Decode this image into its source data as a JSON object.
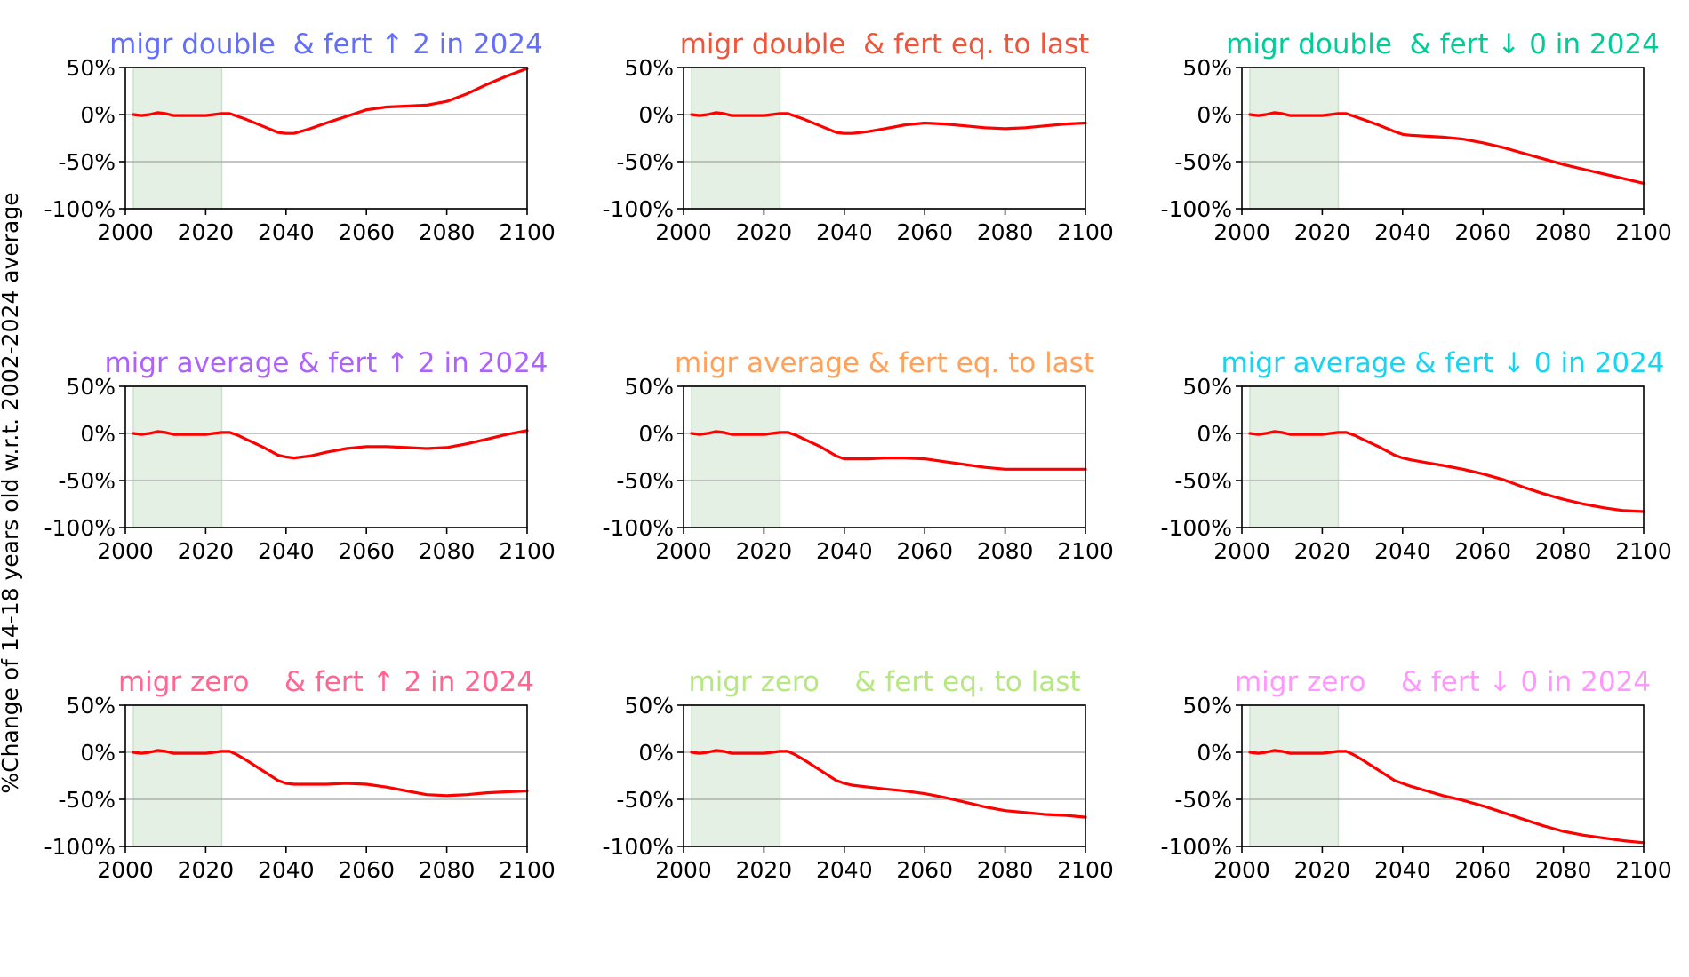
{
  "figure": {
    "ylabel": "%Change of 14-18 years old w.r.t. 2002-2024 average"
  },
  "chart_data": [
    {
      "type": "line",
      "title": "migr double  & fert ↑ 2 in 2024",
      "title_color": "#636efa",
      "line_color": "#ff0000",
      "shaded_x_range": [
        2002,
        2024
      ],
      "xlim": [
        2000,
        2100
      ],
      "ylim": [
        -100,
        50
      ],
      "x_ticks": [
        "2000",
        "2020",
        "2040",
        "2060",
        "2080",
        "2100"
      ],
      "y_ticks": [
        "50%",
        "0%",
        "-50%",
        "-100%"
      ],
      "grid": "horizontal",
      "x": [
        2002,
        2004,
        2006,
        2008,
        2010,
        2012,
        2014,
        2016,
        2018,
        2020,
        2022,
        2024,
        2026,
        2028,
        2030,
        2034,
        2038,
        2040,
        2042,
        2046,
        2050,
        2055,
        2060,
        2065,
        2070,
        2075,
        2080,
        2085,
        2090,
        2095,
        2100
      ],
      "y": [
        0,
        -1,
        0,
        2,
        1,
        -1,
        -1,
        -1,
        -1,
        -1,
        0,
        1,
        1,
        -2,
        -5,
        -12,
        -19,
        -20,
        -20,
        -15,
        -9,
        -2,
        5,
        8,
        9,
        10,
        14,
        22,
        32,
        41,
        49
      ]
    },
    {
      "type": "line",
      "title": "migr double  & fert eq. to last",
      "title_color": "#ef553b",
      "line_color": "#ff0000",
      "shaded_x_range": [
        2002,
        2024
      ],
      "xlim": [
        2000,
        2100
      ],
      "ylim": [
        -100,
        50
      ],
      "x_ticks": [
        "2000",
        "2020",
        "2040",
        "2060",
        "2080",
        "2100"
      ],
      "y_ticks": [
        "50%",
        "0%",
        "-50%",
        "-100%"
      ],
      "grid": "horizontal",
      "x": [
        2002,
        2004,
        2006,
        2008,
        2010,
        2012,
        2014,
        2016,
        2018,
        2020,
        2022,
        2024,
        2026,
        2028,
        2030,
        2034,
        2038,
        2040,
        2042,
        2046,
        2050,
        2055,
        2060,
        2065,
        2070,
        2075,
        2080,
        2085,
        2090,
        2095,
        2100
      ],
      "y": [
        0,
        -1,
        0,
        2,
        1,
        -1,
        -1,
        -1,
        -1,
        -1,
        0,
        1,
        1,
        -2,
        -5,
        -12,
        -19,
        -20,
        -20,
        -18,
        -15,
        -11,
        -9,
        -10,
        -12,
        -14,
        -15,
        -14,
        -12,
        -10,
        -9
      ]
    },
    {
      "type": "line",
      "title": "migr double  & fert ↓ 0 in 2024",
      "title_color": "#00cc96",
      "line_color": "#ff0000",
      "shaded_x_range": [
        2002,
        2024
      ],
      "xlim": [
        2000,
        2100
      ],
      "ylim": [
        -100,
        50
      ],
      "x_ticks": [
        "2000",
        "2020",
        "2040",
        "2060",
        "2080",
        "2100"
      ],
      "y_ticks": [
        "50%",
        "0%",
        "-50%",
        "-100%"
      ],
      "grid": "horizontal",
      "x": [
        2002,
        2004,
        2006,
        2008,
        2010,
        2012,
        2014,
        2016,
        2018,
        2020,
        2022,
        2024,
        2026,
        2028,
        2030,
        2034,
        2038,
        2040,
        2042,
        2046,
        2050,
        2055,
        2060,
        2065,
        2070,
        2075,
        2080,
        2085,
        2090,
        2095,
        2100
      ],
      "y": [
        0,
        -1,
        0,
        2,
        1,
        -1,
        -1,
        -1,
        -1,
        -1,
        0,
        1,
        1,
        -2,
        -5,
        -11,
        -18,
        -21,
        -22,
        -23,
        -24,
        -26,
        -30,
        -35,
        -41,
        -47,
        -53,
        -58,
        -63,
        -68,
        -73
      ]
    },
    {
      "type": "line",
      "title": "migr average & fert ↑ 2 in 2024",
      "title_color": "#ab63fa",
      "line_color": "#ff0000",
      "shaded_x_range": [
        2002,
        2024
      ],
      "xlim": [
        2000,
        2100
      ],
      "ylim": [
        -100,
        50
      ],
      "x_ticks": [
        "2000",
        "2020",
        "2040",
        "2060",
        "2080",
        "2100"
      ],
      "y_ticks": [
        "50%",
        "0%",
        "-50%",
        "-100%"
      ],
      "grid": "horizontal",
      "x": [
        2002,
        2004,
        2006,
        2008,
        2010,
        2012,
        2014,
        2016,
        2018,
        2020,
        2022,
        2024,
        2026,
        2028,
        2030,
        2034,
        2038,
        2040,
        2042,
        2046,
        2050,
        2055,
        2060,
        2065,
        2070,
        2075,
        2080,
        2085,
        2090,
        2095,
        2100
      ],
      "y": [
        0,
        -1,
        0,
        2,
        1,
        -1,
        -1,
        -1,
        -1,
        -1,
        0,
        1,
        1,
        -2,
        -6,
        -14,
        -23,
        -25,
        -26,
        -24,
        -20,
        -16,
        -14,
        -14,
        -15,
        -16,
        -15,
        -11,
        -6,
        -1,
        3
      ]
    },
    {
      "type": "line",
      "title": "migr average & fert eq. to last",
      "title_color": "#ffa15a",
      "line_color": "#ff0000",
      "shaded_x_range": [
        2002,
        2024
      ],
      "xlim": [
        2000,
        2100
      ],
      "ylim": [
        -100,
        50
      ],
      "x_ticks": [
        "2000",
        "2020",
        "2040",
        "2060",
        "2080",
        "2100"
      ],
      "y_ticks": [
        "50%",
        "0%",
        "-50%",
        "-100%"
      ],
      "grid": "horizontal",
      "x": [
        2002,
        2004,
        2006,
        2008,
        2010,
        2012,
        2014,
        2016,
        2018,
        2020,
        2022,
        2024,
        2026,
        2028,
        2030,
        2034,
        2038,
        2040,
        2042,
        2046,
        2050,
        2055,
        2060,
        2065,
        2070,
        2075,
        2080,
        2085,
        2090,
        2095,
        2100
      ],
      "y": [
        0,
        -1,
        0,
        2,
        1,
        -1,
        -1,
        -1,
        -1,
        -1,
        0,
        1,
        1,
        -2,
        -6,
        -14,
        -24,
        -27,
        -27,
        -27,
        -26,
        -26,
        -27,
        -30,
        -33,
        -36,
        -38,
        -38,
        -38,
        -38,
        -38
      ]
    },
    {
      "type": "line",
      "title": "migr average & fert ↓ 0 in 2024",
      "title_color": "#19d3f3",
      "line_color": "#ff0000",
      "shaded_x_range": [
        2002,
        2024
      ],
      "xlim": [
        2000,
        2100
      ],
      "ylim": [
        -100,
        50
      ],
      "x_ticks": [
        "2000",
        "2020",
        "2040",
        "2060",
        "2080",
        "2100"
      ],
      "y_ticks": [
        "50%",
        "0%",
        "-50%",
        "-100%"
      ],
      "grid": "horizontal",
      "x": [
        2002,
        2004,
        2006,
        2008,
        2010,
        2012,
        2014,
        2016,
        2018,
        2020,
        2022,
        2024,
        2026,
        2028,
        2030,
        2034,
        2038,
        2040,
        2042,
        2046,
        2050,
        2055,
        2060,
        2065,
        2070,
        2075,
        2080,
        2085,
        2090,
        2095,
        2100
      ],
      "y": [
        0,
        -1,
        0,
        2,
        1,
        -1,
        -1,
        -1,
        -1,
        -1,
        0,
        1,
        1,
        -2,
        -6,
        -14,
        -23,
        -26,
        -28,
        -31,
        -34,
        -38,
        -43,
        -49,
        -57,
        -64,
        -70,
        -75,
        -79,
        -82,
        -83
      ]
    },
    {
      "type": "line",
      "title": "migr zero    & fert ↑ 2 in 2024",
      "title_color": "#ff6692",
      "line_color": "#ff0000",
      "shaded_x_range": [
        2002,
        2024
      ],
      "xlim": [
        2000,
        2100
      ],
      "ylim": [
        -100,
        50
      ],
      "x_ticks": [
        "2000",
        "2020",
        "2040",
        "2060",
        "2080",
        "2100"
      ],
      "y_ticks": [
        "50%",
        "0%",
        "-50%",
        "-100%"
      ],
      "grid": "horizontal",
      "x": [
        2002,
        2004,
        2006,
        2008,
        2010,
        2012,
        2014,
        2016,
        2018,
        2020,
        2022,
        2024,
        2026,
        2028,
        2030,
        2034,
        2038,
        2040,
        2042,
        2046,
        2050,
        2055,
        2060,
        2065,
        2070,
        2075,
        2080,
        2085,
        2090,
        2095,
        2100
      ],
      "y": [
        0,
        -1,
        0,
        2,
        1,
        -1,
        -1,
        -1,
        -1,
        -1,
        0,
        1,
        1,
        -3,
        -8,
        -19,
        -30,
        -33,
        -34,
        -34,
        -34,
        -33,
        -34,
        -37,
        -41,
        -45,
        -46,
        -45,
        -43,
        -42,
        -41
      ]
    },
    {
      "type": "line",
      "title": "migr zero    & fert eq. to last",
      "title_color": "#b6e880",
      "line_color": "#ff0000",
      "shaded_x_range": [
        2002,
        2024
      ],
      "xlim": [
        2000,
        2100
      ],
      "ylim": [
        -100,
        50
      ],
      "x_ticks": [
        "2000",
        "2020",
        "2040",
        "2060",
        "2080",
        "2100"
      ],
      "y_ticks": [
        "50%",
        "0%",
        "-50%",
        "-100%"
      ],
      "grid": "horizontal",
      "x": [
        2002,
        2004,
        2006,
        2008,
        2010,
        2012,
        2014,
        2016,
        2018,
        2020,
        2022,
        2024,
        2026,
        2028,
        2030,
        2034,
        2038,
        2040,
        2042,
        2046,
        2050,
        2055,
        2060,
        2065,
        2070,
        2075,
        2080,
        2085,
        2090,
        2095,
        2100
      ],
      "y": [
        0,
        -1,
        0,
        2,
        1,
        -1,
        -1,
        -1,
        -1,
        -1,
        0,
        1,
        1,
        -3,
        -8,
        -19,
        -30,
        -33,
        -35,
        -37,
        -39,
        -41,
        -44,
        -48,
        -53,
        -58,
        -62,
        -64,
        -66,
        -67,
        -69
      ]
    },
    {
      "type": "line",
      "title": "migr zero    & fert ↓ 0 in 2024",
      "title_color": "#ff97ff",
      "line_color": "#ff0000",
      "shaded_x_range": [
        2002,
        2024
      ],
      "xlim": [
        2000,
        2100
      ],
      "ylim": [
        -100,
        50
      ],
      "x_ticks": [
        "2000",
        "2020",
        "2040",
        "2060",
        "2080",
        "2100"
      ],
      "y_ticks": [
        "50%",
        "0%",
        "-50%",
        "-100%"
      ],
      "grid": "horizontal",
      "x": [
        2002,
        2004,
        2006,
        2008,
        2010,
        2012,
        2014,
        2016,
        2018,
        2020,
        2022,
        2024,
        2026,
        2028,
        2030,
        2034,
        2038,
        2040,
        2042,
        2046,
        2050,
        2055,
        2060,
        2065,
        2070,
        2075,
        2080,
        2085,
        2090,
        2095,
        2100
      ],
      "y": [
        0,
        -1,
        0,
        2,
        1,
        -1,
        -1,
        -1,
        -1,
        -1,
        0,
        1,
        1,
        -3,
        -8,
        -19,
        -30,
        -33,
        -36,
        -41,
        -46,
        -51,
        -57,
        -64,
        -71,
        -78,
        -84,
        -88,
        -91,
        -94,
        -96
      ]
    }
  ]
}
